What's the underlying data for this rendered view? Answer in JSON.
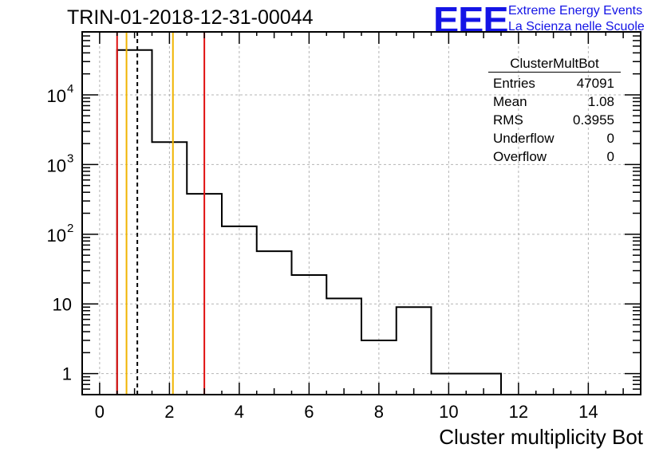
{
  "header": {
    "run_title": "TRIN-01-2018-12-31-00044"
  },
  "logo": {
    "text": "EEE",
    "line1": "Extreme Energy Events",
    "line2": "La Scienza nelle Scuole",
    "color": "#1414e6"
  },
  "stats_box": {
    "title": "ClusterMultBot",
    "rows": [
      {
        "label": "Entries",
        "value": "47091"
      },
      {
        "label": "Mean",
        "value": "1.08"
      },
      {
        "label": "RMS",
        "value": "0.3955"
      },
      {
        "label": "Underflow",
        "value": "0"
      },
      {
        "label": "Overflow",
        "value": "0"
      }
    ]
  },
  "chart_data": {
    "type": "bar",
    "histogram": true,
    "title": "TRIN-01-2018-12-31-00044",
    "xlabel": "Cluster multiplicity Bot",
    "ylabel": "",
    "xlim": [
      -0.5,
      15.5
    ],
    "ylim": [
      0.5,
      80000
    ],
    "yscale": "log",
    "grid": true,
    "bin_edges": [
      0.5,
      1.5,
      2.5,
      3.5,
      4.5,
      5.5,
      6.5,
      7.5,
      8.5,
      9.5,
      10.5,
      11.5
    ],
    "values": [
      44000,
      2100,
      380,
      130,
      57,
      26,
      12,
      3,
      9,
      1,
      1
    ],
    "x_ticks": [
      "0",
      "2",
      "4",
      "6",
      "8",
      "10",
      "12",
      "14"
    ],
    "x_tick_values": [
      0,
      2,
      4,
      6,
      8,
      10,
      12,
      14
    ],
    "y_ticks": [
      {
        "value": 1,
        "label": "1"
      },
      {
        "value": 10,
        "label": "10"
      },
      {
        "value": 100,
        "label": "10",
        "exp": "2"
      },
      {
        "value": 1000,
        "label": "10",
        "exp": "3"
      },
      {
        "value": 10000,
        "label": "10",
        "exp": "4"
      }
    ],
    "vertical_lines": [
      {
        "x": 0.5,
        "color": "#e01010",
        "style": "solid"
      },
      {
        "x": 3.0,
        "color": "#e01010",
        "style": "solid"
      },
      {
        "x": 0.77,
        "color": "#f0b400",
        "style": "solid"
      },
      {
        "x": 2.1,
        "color": "#f0b400",
        "style": "solid"
      },
      {
        "x": 1.08,
        "color": "#000000",
        "style": "dashed"
      }
    ],
    "line_color": "#000000",
    "grid_color": "#b4b4b4"
  }
}
